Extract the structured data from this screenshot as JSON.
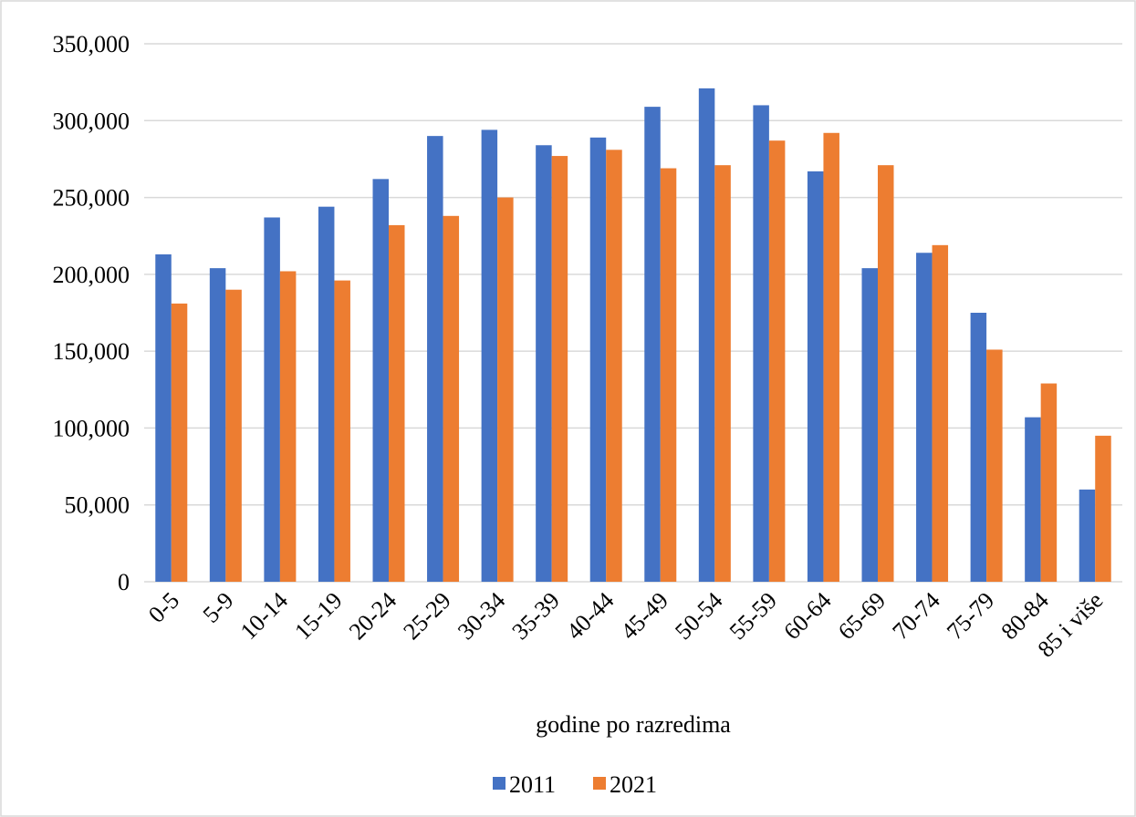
{
  "chart_data": {
    "type": "bar",
    "x_label": "godine po razredima",
    "categories": [
      "0-5",
      "5-9",
      "10-14",
      "15-19",
      "20-24",
      "25-29",
      "30-34",
      "35-39",
      "40-44",
      "45-49",
      "50-54",
      "55-59",
      "60-64",
      "65-69",
      "70-74",
      "75-79",
      "80-84",
      "85 i više"
    ],
    "series": [
      {
        "name": "2011",
        "color": "#4472c4",
        "values": [
          213000,
          204000,
          237000,
          244000,
          262000,
          290000,
          294000,
          284000,
          289000,
          309000,
          321000,
          310000,
          267000,
          204000,
          214000,
          175000,
          107000,
          60000
        ]
      },
      {
        "name": "2021",
        "color": "#ed7d31",
        "values": [
          181000,
          190000,
          202000,
          196000,
          232000,
          238000,
          250000,
          277000,
          281000,
          269000,
          271000,
          287000,
          292000,
          271000,
          219000,
          151000,
          129000,
          95000
        ]
      }
    ],
    "ylim": [
      0,
      350000
    ],
    "yticks": [
      0,
      {
        "value": 50000,
        "label": "50,000"
      },
      {
        "value": 100000,
        "label": "100,000"
      },
      {
        "value": 150000,
        "label": "150,000"
      },
      {
        "value": 200000,
        "label": "200,000"
      },
      {
        "value": 250000,
        "label": "250,000"
      },
      {
        "value": 300000,
        "label": "300,000"
      },
      {
        "value": 350000,
        "label": "350,000"
      }
    ],
    "grid": true,
    "legend": "bottom"
  }
}
